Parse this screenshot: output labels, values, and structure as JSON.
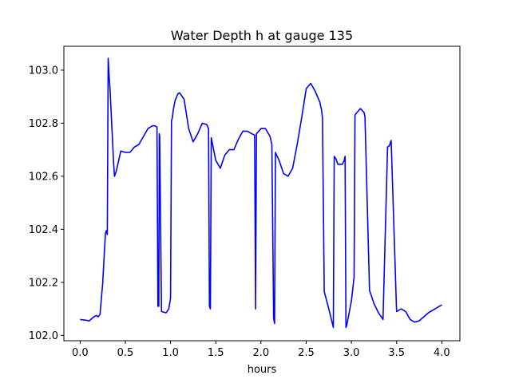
{
  "chart_data": {
    "type": "line",
    "title": "Water Depth h at gauge 135",
    "xlabel": "hours",
    "ylabel": "",
    "xlim": [
      -0.18,
      4.2
    ],
    "ylim": [
      101.98,
      103.09
    ],
    "grid": false,
    "legend": "none",
    "xticks": [
      0.0,
      0.5,
      1.0,
      1.5,
      2.0,
      2.5,
      3.0,
      3.5,
      4.0
    ],
    "xtick_labels": [
      "0.0",
      "0.5",
      "1.0",
      "1.5",
      "2.0",
      "2.5",
      "3.0",
      "3.5",
      "4.0"
    ],
    "yticks": [
      102.0,
      102.2,
      102.4,
      102.6,
      102.8,
      103.0
    ],
    "ytick_labels": [
      "102.0",
      "102.2",
      "102.4",
      "102.6",
      "102.8",
      "103.0"
    ],
    "series": [
      {
        "color": "#0000ff",
        "x": [
          0.0,
          0.05,
          0.1,
          0.15,
          0.18,
          0.2,
          0.22,
          0.25,
          0.27,
          0.28,
          0.29,
          0.3,
          0.31,
          0.32,
          0.33,
          0.34,
          0.35,
          0.36,
          0.37,
          0.38,
          0.4,
          0.45,
          0.5,
          0.55,
          0.6,
          0.65,
          0.7,
          0.75,
          0.8,
          0.83,
          0.85,
          0.86,
          0.87,
          0.875,
          0.88,
          0.9,
          0.95,
          0.98,
          1.0,
          1.01,
          1.02,
          1.03,
          1.05,
          1.08,
          1.1,
          1.15,
          1.2,
          1.25,
          1.3,
          1.35,
          1.4,
          1.42,
          1.43,
          1.44,
          1.45,
          1.5,
          1.55,
          1.6,
          1.65,
          1.7,
          1.75,
          1.8,
          1.85,
          1.9,
          1.93,
          1.94,
          1.95,
          2.0,
          2.05,
          2.1,
          2.12,
          2.14,
          2.15,
          2.16,
          2.2,
          2.25,
          2.3,
          2.35,
          2.4,
          2.45,
          2.5,
          2.55,
          2.6,
          2.65,
          2.67,
          2.68,
          2.7,
          2.75,
          2.8,
          2.81,
          2.83,
          2.85,
          2.9,
          2.92,
          2.93,
          2.94,
          2.95,
          3.0,
          3.03,
          3.04,
          3.06,
          3.1,
          3.14,
          3.15,
          3.2,
          3.25,
          3.3,
          3.34,
          3.35,
          3.4,
          3.42,
          3.43,
          3.44,
          3.5,
          3.55,
          3.6,
          3.65,
          3.7,
          3.75,
          3.8,
          3.85,
          3.9,
          3.95,
          4.0
        ],
        "y": [
          102.06,
          102.058,
          102.055,
          102.07,
          102.075,
          102.07,
          102.08,
          102.2,
          102.33,
          102.385,
          102.395,
          102.38,
          103.045,
          102.98,
          102.93,
          102.86,
          102.79,
          102.72,
          102.65,
          102.6,
          102.62,
          102.695,
          102.69,
          102.69,
          102.71,
          102.72,
          102.75,
          102.78,
          102.79,
          102.79,
          102.785,
          102.11,
          102.11,
          102.76,
          102.75,
          102.09,
          102.085,
          102.1,
          102.14,
          102.81,
          102.82,
          102.85,
          102.885,
          102.91,
          102.915,
          102.89,
          102.78,
          102.73,
          102.76,
          102.8,
          102.795,
          102.78,
          102.11,
          102.1,
          102.745,
          102.66,
          102.63,
          102.68,
          102.7,
          102.7,
          102.74,
          102.77,
          102.77,
          102.76,
          102.755,
          102.1,
          102.76,
          102.78,
          102.78,
          102.75,
          102.72,
          102.065,
          102.045,
          102.69,
          102.66,
          102.61,
          102.6,
          102.63,
          102.72,
          102.82,
          102.93,
          102.95,
          102.92,
          102.88,
          102.85,
          102.82,
          102.165,
          102.1,
          102.03,
          102.675,
          102.665,
          102.645,
          102.645,
          102.66,
          102.675,
          102.03,
          102.04,
          102.13,
          102.22,
          102.83,
          102.84,
          102.855,
          102.84,
          102.825,
          102.17,
          102.12,
          102.085,
          102.065,
          102.06,
          102.71,
          102.715,
          102.725,
          102.735,
          102.09,
          102.1,
          102.09,
          102.06,
          102.05,
          102.055,
          102.07,
          102.085,
          102.095,
          102.105,
          102.115
        ]
      }
    ]
  }
}
